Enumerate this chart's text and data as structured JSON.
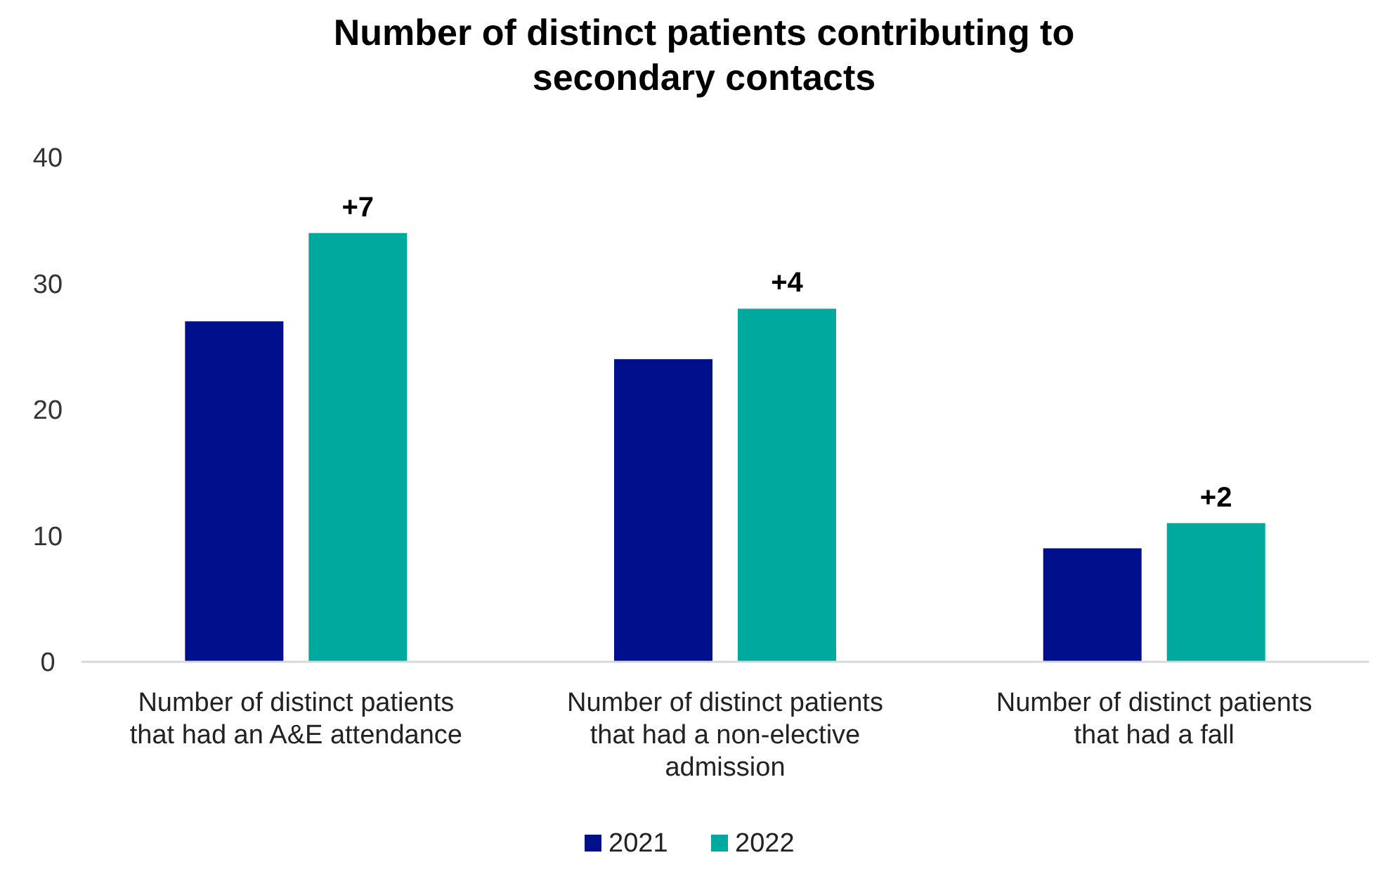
{
  "chart_data": {
    "type": "bar",
    "title": "Number of distinct patients contributing to secondary contacts",
    "categories": [
      "Number of distinct patients that had an A&E attendance",
      "Number of distinct patients that had a non-elective admission",
      "Number of distinct patients that had a fall"
    ],
    "series": [
      {
        "name": "2021",
        "color": "#000f8c",
        "values": [
          27,
          24,
          9
        ]
      },
      {
        "name": "2022",
        "color": "#00a99d",
        "values": [
          34,
          28,
          11
        ]
      }
    ],
    "annotations": [
      "+7",
      "+4",
      "+2"
    ],
    "ylim": [
      0,
      40
    ],
    "yticks": [
      0,
      10,
      20,
      30,
      40
    ],
    "grid": false,
    "legend": "bottom"
  }
}
